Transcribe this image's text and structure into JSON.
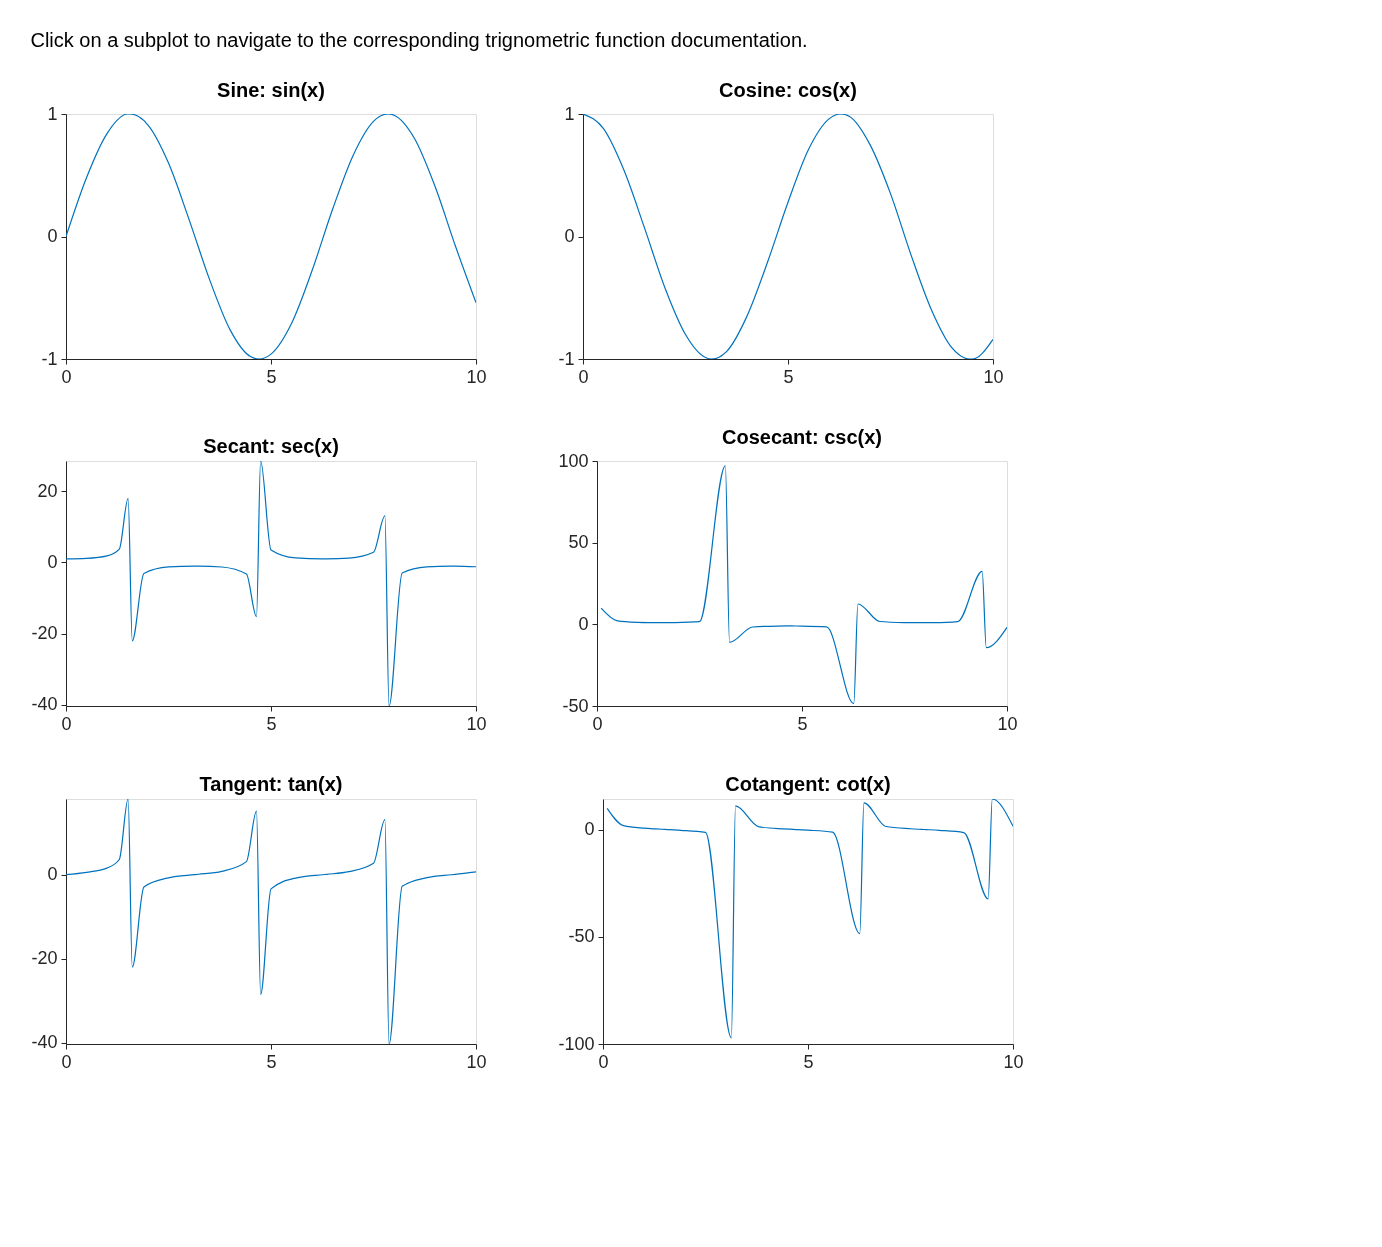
{
  "chart_data": [
    {
      "type": "line",
      "title": "Sine: sin(x)",
      "annotations": [
        "Click on a subplot to navigate to the corresponding trignometric function documentation."
      ],
      "x": [
        0,
        0.5,
        1,
        1.5,
        1.571,
        2,
        2.5,
        3,
        3.5,
        4,
        4.5,
        4.712,
        5,
        5.5,
        6,
        6.5,
        7,
        7.5,
        7.854,
        8,
        8.5,
        9,
        9.5,
        10
      ],
      "series": [
        {
          "color": "#0072bd",
          "values": [
            0,
            0.48,
            0.84,
            1.0,
            1,
            0.91,
            0.6,
            0.14,
            -0.35,
            -0.76,
            -0.98,
            -1,
            -0.96,
            -0.71,
            -0.28,
            0.22,
            0.66,
            0.94,
            1,
            0.99,
            0.8,
            0.41,
            -0.08,
            -0.54
          ]
        }
      ],
      "xlim": [
        0,
        10
      ],
      "ylim": [
        -1,
        1
      ],
      "xticks": [
        0,
        5,
        10
      ],
      "yticks": [
        -1,
        0,
        1
      ]
    },
    {
      "type": "line",
      "title": "Cosine: cos(x)",
      "x": [
        0,
        0.5,
        1,
        1.5,
        2,
        2.5,
        3,
        3.142,
        3.5,
        4,
        4.5,
        5,
        5.5,
        6,
        6.283,
        6.5,
        7,
        7.5,
        8,
        8.5,
        9,
        9.425,
        9.5,
        10
      ],
      "series": [
        {
          "color": "#0072bd",
          "values": [
            1,
            0.88,
            0.54,
            0.07,
            -0.42,
            -0.8,
            -0.99,
            -1,
            -0.94,
            -0.65,
            -0.21,
            0.28,
            0.71,
            0.96,
            1,
            0.98,
            0.75,
            0.35,
            -0.15,
            -0.6,
            -0.91,
            -1,
            -1.0,
            -0.84
          ]
        }
      ],
      "xlim": [
        0,
        10
      ],
      "ylim": [
        -1,
        1
      ],
      "xticks": [
        0,
        5,
        10
      ],
      "yticks": [
        -1,
        0,
        1
      ]
    },
    {
      "type": "line",
      "title": "Secant: sec(x)",
      "x": [
        0,
        0.5,
        1,
        1.3,
        1.515,
        1.616,
        1.9,
        2.5,
        3.131,
        3.232,
        3.8,
        4.4,
        4.646,
        4.747,
        5,
        5.6,
        6.263,
        6.364,
        6.9,
        7.5,
        7.778,
        7.879,
        8.2,
        8.8,
        9.394,
        9.495,
        10
      ],
      "series": [
        {
          "color": "#0072bd",
          "values": [
            1,
            1.14,
            1.85,
            3.74,
            18.0,
            -22.0,
            -3.09,
            -1.25,
            -1.0,
            -1.0,
            -1.26,
            -3.25,
            -15.2,
            28.5,
            3.52,
            1.29,
            1.0,
            1.0,
            1.23,
            2.89,
            13.1,
            -40.3,
            -2.95,
            -1.23,
            -1.0,
            -1.0,
            -1.19
          ]
        }
      ],
      "xlim": [
        0,
        10
      ],
      "ylim": [
        -40.3,
        28.5
      ],
      "xticks": [
        0,
        5,
        10
      ],
      "yticks": [
        -40,
        -20,
        0,
        20
      ]
    },
    {
      "type": "line",
      "title": "Cosecant: csc(x)",
      "x": [
        0.101,
        0.5,
        1,
        1.3,
        1.515,
        1.616,
        1.9,
        2.5,
        3.131,
        3.232,
        3.8,
        4.4,
        4.646,
        4.747,
        5,
        5.6,
        6.263,
        6.364,
        6.9,
        7.5,
        7.778,
        7.879,
        8.2,
        8.8,
        9.394,
        9.495,
        10
      ],
      "series": [
        {
          "color": "#0072bd",
          "values": [
            9.92,
            2.09,
            1.19,
            1.04,
            1.0,
            1.0,
            1.06,
            1.67,
            97.1,
            -11.0,
            -1.63,
            -1.05,
            -1.0,
            -1.0,
            -1.04,
            -1.58,
            -48.5,
            12.45,
            1.73,
            1.07,
            1.0,
            1.0,
            1.06,
            1.71,
            32.4,
            -14.3,
            -1.84
          ]
        }
      ],
      "xlim": [
        0,
        10
      ],
      "ylim": [
        -50,
        100
      ],
      "xticks": [
        0,
        5,
        10
      ],
      "yticks": [
        -50,
        0,
        50,
        100
      ]
    },
    {
      "type": "line",
      "title": "Tangent: tan(x)",
      "x": [
        0,
        0.5,
        1,
        1.3,
        1.515,
        1.616,
        1.9,
        2.5,
        3.131,
        3.232,
        3.8,
        4.4,
        4.646,
        4.747,
        5,
        5.6,
        6.263,
        6.364,
        6.9,
        7.5,
        7.778,
        7.879,
        8.2,
        8.8,
        9.394,
        9.495,
        10
      ],
      "series": [
        {
          "color": "#0072bd",
          "values": [
            0,
            0.55,
            1.56,
            3.6,
            18.0,
            -22.0,
            -2.93,
            -0.75,
            -0.01,
            0.09,
            0.77,
            3.1,
            15.1,
            -28.5,
            -3.38,
            -0.81,
            -0.02,
            0.08,
            0.71,
            2.71,
            13.1,
            -40.3,
            -2.77,
            -0.72,
            -0.03,
            0.07,
            0.65
          ]
        }
      ],
      "xlim": [
        0,
        10
      ],
      "ylim": [
        -40.3,
        18
      ],
      "xticks": [
        0,
        5,
        10
      ],
      "yticks": [
        -40,
        -20,
        0
      ]
    },
    {
      "type": "line",
      "title": "Cotangent: cot(x)",
      "x": [
        0.101,
        0.5,
        1,
        1.3,
        1.515,
        1.616,
        1.9,
        2.5,
        3.131,
        3.232,
        3.8,
        4.4,
        4.646,
        4.747,
        5,
        5.6,
        6.263,
        6.364,
        6.9,
        7.5,
        7.778,
        7.879,
        8.2,
        8.8,
        9.394,
        9.495,
        10
      ],
      "series": [
        {
          "color": "#0072bd",
          "values": [
            9.87,
            1.83,
            0.64,
            0.28,
            0.06,
            -0.05,
            -0.34,
            -1.34,
            -97.1,
            11.0,
            1.29,
            0.32,
            0.07,
            -0.04,
            -0.3,
            -1.23,
            -48.5,
            12.4,
            1.41,
            0.37,
            0.08,
            -0.02,
            -0.36,
            -1.39,
            -32.3,
            14.25,
            1.54
          ]
        }
      ],
      "xlim": [
        0,
        10
      ],
      "ylim": [
        -100,
        14.25
      ],
      "xticks": [
        0,
        5,
        10
      ],
      "yticks": [
        -100,
        -50,
        0
      ]
    }
  ]
}
